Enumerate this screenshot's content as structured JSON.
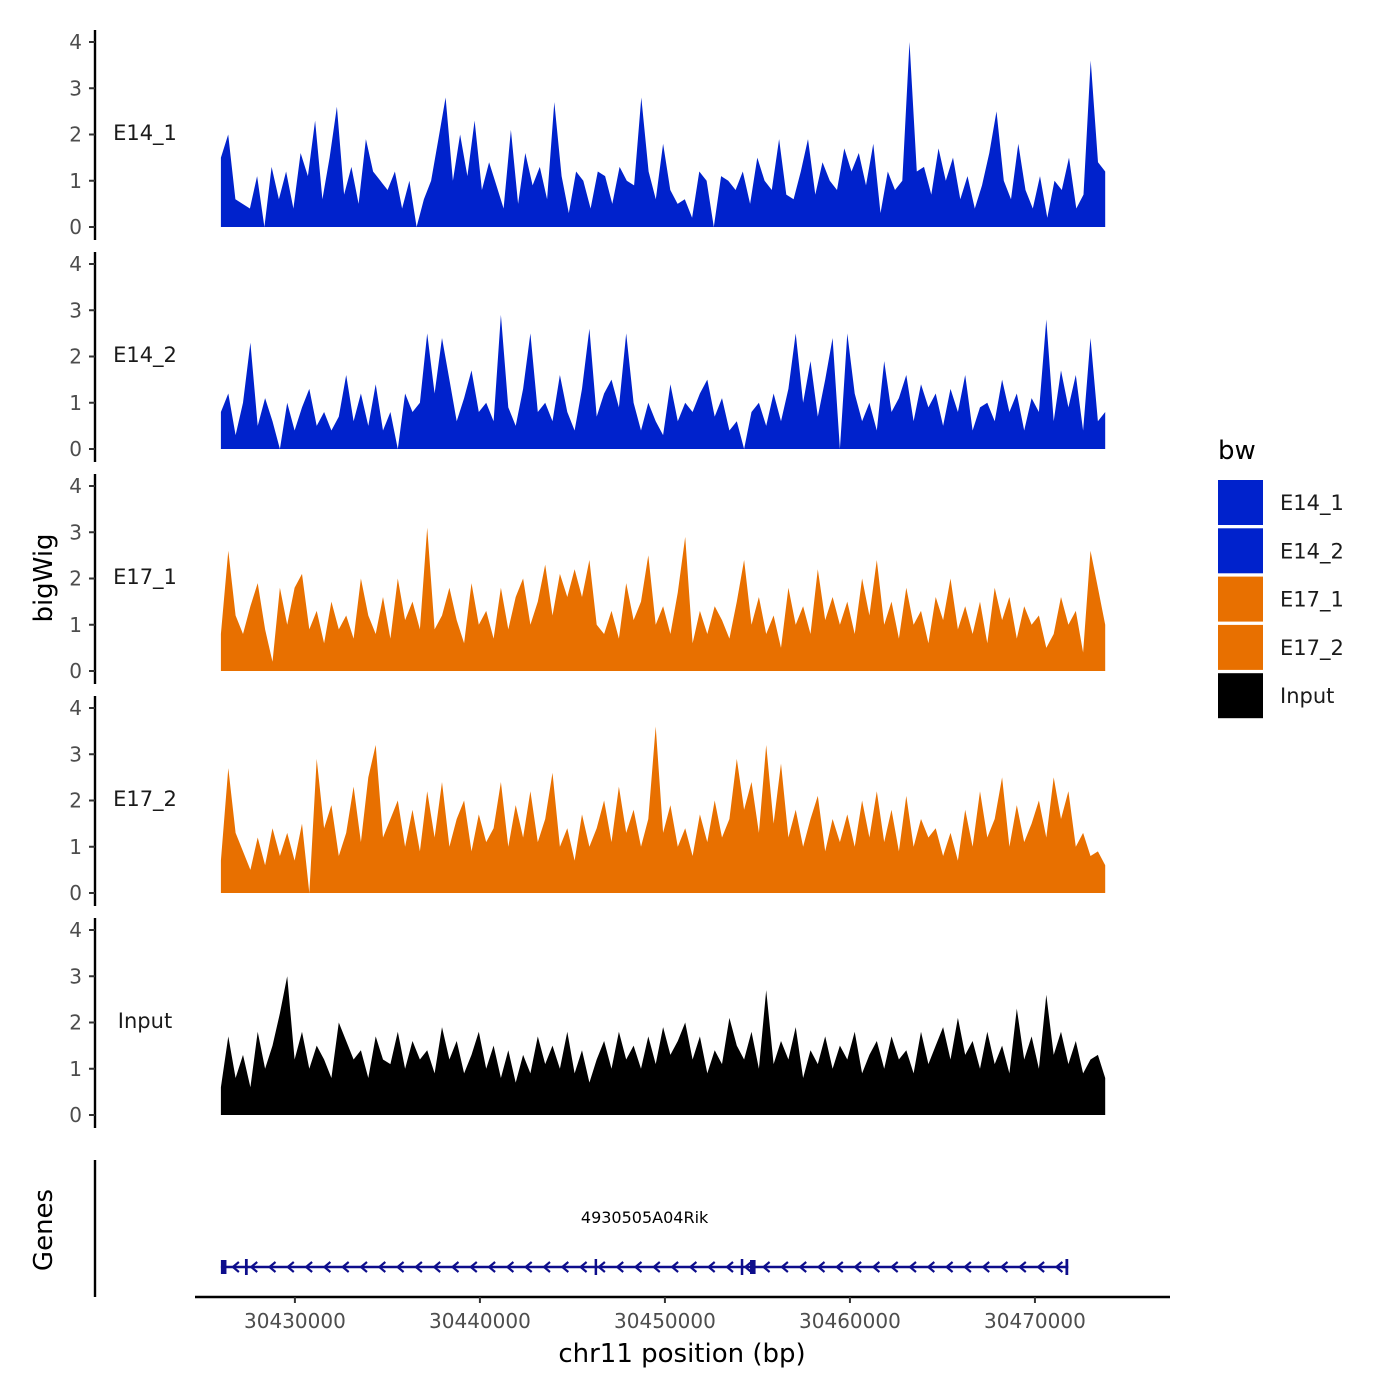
{
  "chart_data": {
    "type": "area",
    "ylabel": "bigWig",
    "xlabel": "chr11 position (bp)",
    "genes_label": "Genes",
    "ylim": [
      0,
      4
    ],
    "y_ticks": [
      "0",
      "1",
      "2",
      "3",
      "4"
    ],
    "xlim": [
      30424600,
      30477300
    ],
    "x_ticks": [
      {
        "value": 30430000,
        "label": "30430000"
      },
      {
        "value": 30440000,
        "label": "30440000"
      },
      {
        "value": 30450000,
        "label": "30450000"
      },
      {
        "value": 30460000,
        "label": "30460000"
      },
      {
        "value": 30470000,
        "label": "30470000"
      }
    ],
    "legend": {
      "title": "bw",
      "entries": [
        {
          "label": "E14_1",
          "color": "#0022CC"
        },
        {
          "label": "E14_2",
          "color": "#0022CC"
        },
        {
          "label": "E17_1",
          "color": "#E87000"
        },
        {
          "label": "E17_2",
          "color": "#E87000"
        },
        {
          "label": "Input",
          "color": "#000000"
        }
      ]
    },
    "series": [
      {
        "name": "E14_1",
        "label": "E14_1",
        "color": "#0022CC",
        "x_start": 30426000,
        "x_end": 30473800,
        "values": [
          1.5,
          2.0,
          0.6,
          0.5,
          0.4,
          1.1,
          0.0,
          1.3,
          0.6,
          1.2,
          0.4,
          1.6,
          1.1,
          2.3,
          0.6,
          1.5,
          2.6,
          0.7,
          1.3,
          0.5,
          1.9,
          1.2,
          1.0,
          0.8,
          1.2,
          0.4,
          1.0,
          0.0,
          0.6,
          1.0,
          1.9,
          2.8,
          1.0,
          2.0,
          1.1,
          2.3,
          0.8,
          1.4,
          0.9,
          0.4,
          2.1,
          0.5,
          1.6,
          0.9,
          1.3,
          0.6,
          2.7,
          1.1,
          0.3,
          1.2,
          1.0,
          0.4,
          1.2,
          1.1,
          0.5,
          1.3,
          1.0,
          0.9,
          2.8,
          1.2,
          0.6,
          1.8,
          0.8,
          0.5,
          0.6,
          0.2,
          1.2,
          1.0,
          0.0,
          1.1,
          1.0,
          0.8,
          1.2,
          0.5,
          1.5,
          1.0,
          0.8,
          1.9,
          0.7,
          0.6,
          1.2,
          1.9,
          0.7,
          1.4,
          1.0,
          0.8,
          1.7,
          1.2,
          1.6,
          0.9,
          1.8,
          0.3,
          1.2,
          0.8,
          1.0,
          4.0,
          1.2,
          1.3,
          0.7,
          1.7,
          1.0,
          1.5,
          0.6,
          1.1,
          0.4,
          0.9,
          1.6,
          2.5,
          1.0,
          0.6,
          1.8,
          0.8,
          0.4,
          1.1,
          0.2,
          1.0,
          0.8,
          1.5,
          0.4,
          0.7,
          3.6,
          1.4,
          1.2
        ]
      },
      {
        "name": "E14_2",
        "label": "E14_2",
        "color": "#0022CC",
        "x_start": 30426000,
        "x_end": 30473800,
        "values": [
          0.8,
          1.2,
          0.3,
          1.0,
          2.3,
          0.5,
          1.1,
          0.6,
          0.0,
          1.0,
          0.4,
          0.9,
          1.3,
          0.5,
          0.8,
          0.4,
          0.7,
          1.6,
          0.6,
          1.2,
          0.5,
          1.4,
          0.4,
          0.8,
          0.0,
          1.2,
          0.8,
          1.0,
          2.5,
          1.2,
          2.4,
          1.5,
          0.6,
          1.1,
          1.7,
          0.8,
          1.0,
          0.6,
          2.9,
          0.9,
          0.5,
          1.3,
          2.5,
          0.8,
          1.0,
          0.6,
          1.6,
          0.8,
          0.4,
          1.3,
          2.6,
          0.7,
          1.2,
          1.5,
          0.9,
          2.5,
          1.0,
          0.4,
          1.0,
          0.6,
          0.3,
          1.4,
          0.6,
          1.0,
          0.8,
          1.2,
          1.5,
          0.7,
          1.1,
          0.4,
          0.6,
          0.0,
          0.8,
          1.0,
          0.5,
          1.2,
          0.6,
          1.3,
          2.5,
          1.0,
          1.9,
          0.7,
          1.5,
          2.4,
          0.0,
          2.5,
          1.2,
          0.6,
          1.0,
          0.4,
          1.9,
          0.8,
          1.1,
          1.6,
          0.6,
          1.4,
          0.9,
          1.2,
          0.5,
          1.3,
          0.8,
          1.6,
          0.4,
          0.9,
          1.0,
          0.6,
          1.5,
          0.8,
          1.2,
          0.4,
          1.1,
          0.8,
          2.8,
          0.6,
          1.7,
          0.9,
          1.6,
          0.4,
          2.4,
          0.6,
          0.8
        ]
      },
      {
        "name": "E17_1",
        "label": "E17_1",
        "color": "#E87000",
        "x_start": 30426000,
        "x_end": 30473800,
        "values": [
          0.8,
          2.6,
          1.2,
          0.8,
          1.4,
          1.9,
          0.9,
          0.2,
          1.8,
          1.0,
          1.8,
          2.1,
          0.9,
          1.3,
          0.6,
          1.5,
          0.9,
          1.2,
          0.7,
          2.0,
          1.2,
          0.8,
          1.6,
          0.7,
          2.0,
          1.1,
          1.5,
          0.9,
          3.1,
          0.9,
          1.2,
          1.8,
          1.1,
          0.6,
          1.9,
          1.0,
          1.3,
          0.7,
          1.8,
          0.9,
          1.6,
          2.0,
          1.0,
          1.5,
          2.3,
          1.2,
          2.1,
          1.6,
          2.2,
          1.6,
          2.4,
          1.0,
          0.8,
          1.3,
          0.7,
          1.9,
          1.1,
          1.5,
          2.5,
          1.0,
          1.4,
          0.8,
          1.7,
          2.9,
          0.6,
          1.3,
          0.8,
          1.4,
          1.1,
          0.7,
          1.5,
          2.4,
          1.0,
          1.6,
          0.8,
          1.2,
          0.5,
          1.8,
          1.0,
          1.4,
          0.8,
          2.2,
          1.1,
          1.6,
          1.0,
          1.5,
          0.8,
          2.0,
          1.2,
          2.4,
          1.0,
          1.5,
          0.7,
          1.8,
          1.0,
          1.3,
          0.6,
          1.6,
          1.1,
          2.0,
          0.9,
          1.4,
          0.8,
          1.5,
          0.6,
          1.8,
          1.1,
          1.6,
          0.7,
          1.4,
          1.0,
          1.2,
          0.5,
          0.8,
          1.6,
          1.0,
          1.3,
          0.4,
          2.6,
          1.8,
          1.0
        ]
      },
      {
        "name": "E17_2",
        "label": "E17_2",
        "color": "#E87000",
        "x_start": 30426000,
        "x_end": 30473800,
        "values": [
          0.7,
          2.7,
          1.3,
          0.9,
          0.5,
          1.2,
          0.6,
          1.4,
          0.8,
          1.3,
          0.7,
          1.5,
          0.0,
          2.9,
          1.4,
          1.9,
          0.8,
          1.3,
          2.3,
          1.1,
          2.5,
          3.2,
          1.2,
          1.6,
          2.0,
          1.0,
          1.8,
          0.9,
          2.2,
          1.2,
          2.4,
          1.0,
          1.6,
          2.0,
          0.9,
          1.7,
          1.1,
          1.4,
          2.4,
          1.0,
          1.9,
          1.2,
          2.2,
          1.1,
          1.6,
          2.6,
          1.0,
          1.4,
          0.7,
          1.7,
          1.0,
          1.4,
          2.0,
          1.1,
          2.3,
          1.3,
          1.8,
          1.0,
          1.6,
          3.6,
          1.3,
          1.9,
          1.0,
          1.4,
          0.8,
          1.7,
          1.1,
          2.0,
          1.2,
          1.6,
          2.9,
          1.8,
          2.4,
          1.3,
          3.2,
          1.5,
          2.8,
          1.2,
          1.8,
          1.0,
          1.6,
          2.1,
          0.9,
          1.6,
          1.1,
          1.7,
          1.0,
          2.0,
          1.2,
          2.2,
          1.1,
          1.8,
          0.9,
          2.1,
          1.0,
          1.6,
          1.2,
          1.4,
          0.8,
          1.3,
          0.7,
          1.8,
          1.0,
          2.2,
          1.2,
          1.6,
          2.5,
          1.0,
          1.9,
          1.1,
          1.5,
          2.0,
          1.2,
          2.5,
          1.6,
          2.2,
          1.0,
          1.3,
          0.8,
          0.9,
          0.6
        ]
      },
      {
        "name": "Input",
        "label": "Input",
        "color": "#000000",
        "x_start": 30426000,
        "x_end": 30473800,
        "values": [
          0.6,
          1.7,
          0.8,
          1.3,
          0.6,
          1.8,
          1.0,
          1.5,
          2.2,
          3.0,
          1.2,
          1.8,
          1.0,
          1.5,
          1.2,
          0.8,
          2.0,
          1.6,
          1.2,
          1.4,
          0.8,
          1.7,
          1.2,
          1.1,
          1.8,
          1.0,
          1.6,
          1.2,
          1.4,
          0.9,
          1.9,
          1.2,
          1.6,
          0.9,
          1.3,
          1.8,
          1.0,
          1.5,
          0.8,
          1.4,
          0.7,
          1.3,
          0.9,
          1.7,
          1.1,
          1.5,
          1.0,
          1.8,
          0.9,
          1.4,
          0.7,
          1.2,
          1.6,
          1.0,
          1.8,
          1.2,
          1.5,
          1.0,
          1.7,
          1.1,
          1.9,
          1.3,
          1.6,
          2.0,
          1.2,
          1.7,
          0.9,
          1.4,
          1.1,
          2.1,
          1.5,
          1.2,
          1.8,
          1.0,
          2.7,
          1.1,
          1.6,
          1.2,
          1.9,
          0.8,
          1.4,
          1.1,
          1.7,
          1.0,
          1.5,
          1.2,
          1.8,
          0.9,
          1.3,
          1.6,
          1.0,
          1.7,
          1.2,
          1.4,
          0.9,
          1.8,
          1.1,
          1.5,
          1.9,
          1.2,
          2.1,
          1.3,
          1.6,
          1.0,
          1.8,
          1.1,
          1.5,
          0.9,
          2.3,
          1.2,
          1.7,
          1.0,
          2.6,
          1.3,
          1.8,
          1.1,
          1.6,
          0.9,
          1.2,
          1.3,
          0.8
        ]
      }
    ],
    "gene": {
      "name": "4930505A04Rik",
      "strand": "-",
      "start": 30426000,
      "end": 30471800,
      "color": "#0D0D8C",
      "exons": [
        {
          "start": 30426000,
          "end": 30426300
        },
        {
          "start": 30427300,
          "end": 30427450
        },
        {
          "start": 30446200,
          "end": 30446320
        },
        {
          "start": 30454100,
          "end": 30454180
        },
        {
          "start": 30454600,
          "end": 30454900
        },
        {
          "start": 30471650,
          "end": 30471800
        }
      ]
    }
  }
}
